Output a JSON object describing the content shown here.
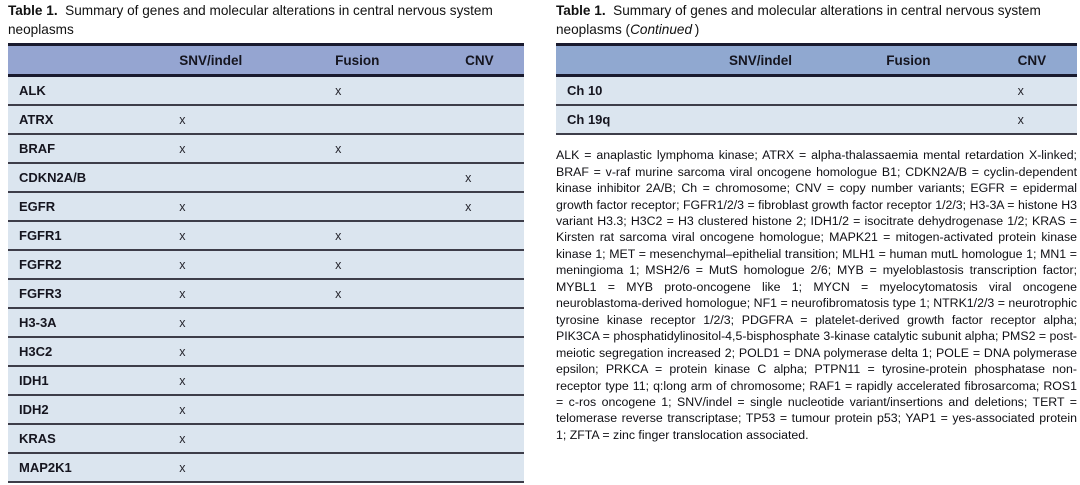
{
  "colors": {
    "page_bg": "#ffffff",
    "header_bg_left": "#95a5d1",
    "header_bg_right": "#90a8d0",
    "row_bg": "#dbe5ef",
    "table_border": "#191a2e",
    "row_separator": "#3d3d49",
    "text": "#1a1a1a"
  },
  "left_panel": {
    "title_label": "Table 1.",
    "title_text": "Summary of genes and molecular alterations in central nervous system neoplasms",
    "table": {
      "columns": [
        "",
        "SNV/indel",
        "Fusion",
        "CNV"
      ],
      "rows": [
        {
          "gene": "ALK",
          "snv": "",
          "fusion": "x",
          "cnv": ""
        },
        {
          "gene": "ATRX",
          "snv": "x",
          "fusion": "",
          "cnv": ""
        },
        {
          "gene": "BRAF",
          "snv": "x",
          "fusion": "x",
          "cnv": ""
        },
        {
          "gene": "CDKN2A/B",
          "snv": "",
          "fusion": "",
          "cnv": "x"
        },
        {
          "gene": "EGFR",
          "snv": "x",
          "fusion": "",
          "cnv": "x"
        },
        {
          "gene": "FGFR1",
          "snv": "x",
          "fusion": "x",
          "cnv": ""
        },
        {
          "gene": "FGFR2",
          "snv": "x",
          "fusion": "x",
          "cnv": ""
        },
        {
          "gene": "FGFR3",
          "snv": "x",
          "fusion": "x",
          "cnv": ""
        },
        {
          "gene": "H3-3A",
          "snv": "x",
          "fusion": "",
          "cnv": ""
        },
        {
          "gene": "H3C2",
          "snv": "x",
          "fusion": "",
          "cnv": ""
        },
        {
          "gene": "IDH1",
          "snv": "x",
          "fusion": "",
          "cnv": ""
        },
        {
          "gene": "IDH2",
          "snv": "x",
          "fusion": "",
          "cnv": ""
        },
        {
          "gene": "KRAS",
          "snv": "x",
          "fusion": "",
          "cnv": ""
        },
        {
          "gene": "MAP2K1",
          "snv": "x",
          "fusion": "",
          "cnv": ""
        }
      ]
    }
  },
  "right_panel": {
    "title_label": "Table 1.",
    "title_text": "Summary of genes and molecular alterations in central nervous system neoplasms",
    "continued_open": "(",
    "continued_label": "Continued",
    "continued_close": ")",
    "table": {
      "columns": [
        "",
        "SNV/indel",
        "Fusion",
        "CNV"
      ],
      "rows": [
        {
          "gene": "Ch 10",
          "snv": "",
          "fusion": "",
          "cnv": "x"
        },
        {
          "gene": "Ch 19q",
          "snv": "",
          "fusion": "",
          "cnv": "x"
        }
      ]
    },
    "footnote": "ALK = anaplastic lymphoma kinase; ATRX = alpha-thalassaemia mental retardation X-linked; BRAF = v-raf murine sarcoma viral oncogene homologue B1; CDKN2A/B = cyclin-dependent kinase inhibitor 2A/B; Ch = chromosome; CNV = copy number variants; EGFR = epidermal growth factor receptor; FGFR1/2/3 = fibroblast growth factor receptor 1/2/3; H3-3A = histone H3 variant H3.3; H3C2 = H3 clustered histone 2; IDH1/2 = isocitrate dehydrogenase 1/2; KRAS = Kirsten rat sarcoma viral oncogene homologue; MAPK21 = mitogen-activated protein kinase kinase 1; MET = mesenchymal–epithelial transition; MLH1 = human mutL homologue 1; MN1 = meningioma 1; MSH2/6 = MutS homologue 2/6; MYB = myeloblastosis transcription factor; MYBL1 = MYB proto-oncogene like 1; MYCN = myelocytomatosis viral oncogene neuroblastoma-derived homologue; NF1 = neurofibromatosis type 1; NTRK1/2/3 = neurotrophic tyrosine kinase receptor 1/2/3; PDGFRA = platelet-derived growth factor receptor alpha; PIK3CA = phosphatidylinositol-4,5-bisphosphate 3-kinase catalytic subunit alpha; PMS2 = post-meiotic segregation increased 2; POLD1 = DNA polymerase delta 1; POLE = DNA polymerase epsilon; PRKCA = protein kinase C alpha; PTPN11 = tyrosine-protein phosphatase non-receptor type 11; q:long arm of chromosome; RAF1 = rapidly accelerated fibrosarcoma; ROS1 = c-ros oncogene 1; SNV/indel = single nucleotide variant/insertions and deletions; TERT = telomerase reverse transcriptase; TP53 = tumour protein p53; YAP1 = yes-associated protein 1; ZFTA = zinc finger translocation associated."
  }
}
